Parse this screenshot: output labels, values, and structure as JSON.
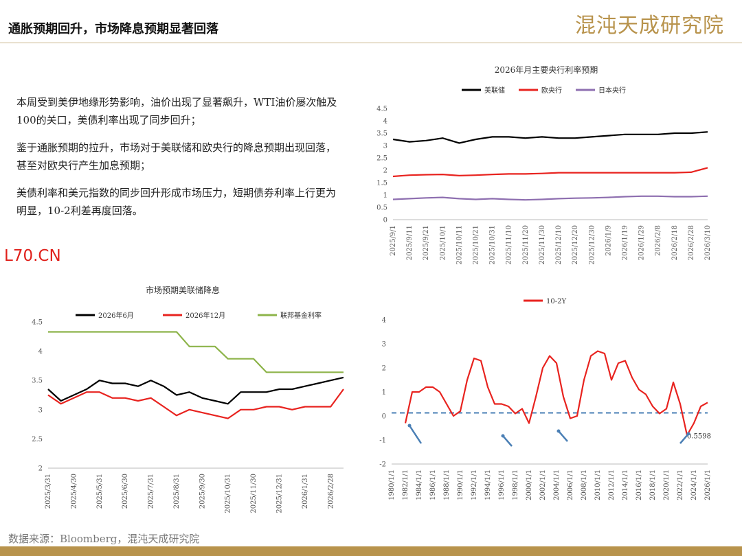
{
  "header": {
    "title": "通胀预期回升，市场降息预期显著回落",
    "logo": "混沌天成研究院"
  },
  "watermark": "L70.CN",
  "text": {
    "paragraphs": [
      "本周受到美伊地缘形势影响，油价出现了显著飙升，WTI油价屡次触及100的关口，美债利率出现了同步回升；",
      "鉴于通胀预期的拉升，市场对于美联储和欧央行的降息预期出现回落，甚至对欧央行产生加息预期；",
      "美债利率和美元指数的同步回升形成市场压力，短期债券利率上行更为明显，10-2利差再度回落。"
    ]
  },
  "source": "数据来源：Bloomberg，混沌天成研究院",
  "chart_data": [
    {
      "type": "line",
      "title": "2026年月主要央行利率预期",
      "categories": [
        "2025/9/1",
        "2025/9/11",
        "2025/9/21",
        "2025/10/1",
        "2025/10/11",
        "2025/10/21",
        "2025/10/31",
        "2025/11/10",
        "2025/11/20",
        "2025/11/30",
        "2025/12/10",
        "2025/12/20",
        "2025/12/30",
        "2026/1/9",
        "2026/1/19",
        "2026/1/29",
        "2026/2/8",
        "2026/2/18",
        "2026/2/28",
        "2026/3/10"
      ],
      "series": [
        {
          "name": "美联储",
          "color": "#000000",
          "values": [
            3.25,
            3.15,
            3.2,
            3.3,
            3.1,
            3.25,
            3.35,
            3.35,
            3.3,
            3.35,
            3.3,
            3.3,
            3.35,
            3.4,
            3.45,
            3.45,
            3.45,
            3.5,
            3.5,
            3.55
          ]
        },
        {
          "name": "欧央行",
          "color": "#e8231f",
          "values": [
            1.75,
            1.8,
            1.82,
            1.83,
            1.78,
            1.8,
            1.83,
            1.85,
            1.85,
            1.87,
            1.9,
            1.9,
            1.9,
            1.9,
            1.9,
            1.9,
            1.9,
            1.9,
            1.92,
            2.1
          ]
        },
        {
          "name": "日本央行",
          "color": "#8e6fb0",
          "values": [
            0.82,
            0.85,
            0.88,
            0.9,
            0.85,
            0.82,
            0.85,
            0.82,
            0.8,
            0.82,
            0.85,
            0.87,
            0.88,
            0.9,
            0.93,
            0.95,
            0.95,
            0.93,
            0.93,
            0.95
          ]
        }
      ],
      "ylim": [
        0,
        4.5
      ],
      "yticks": [
        0,
        0.5,
        1,
        1.5,
        2,
        2.5,
        3,
        3.5,
        4,
        4.5
      ],
      "grid": false
    },
    {
      "type": "line",
      "title": "市场预期美联储降息",
      "categories": [
        "2025/3/31",
        null,
        "2025/4/30",
        null,
        "2025/5/31",
        null,
        "2025/6/30",
        null,
        "2025/7/31",
        null,
        "2025/8/31",
        null,
        "2025/9/30",
        null,
        "2025/10/31",
        null,
        "2025/11/30",
        null,
        "2025/12/31",
        null,
        "2026/1/31",
        null,
        "2026/2/28",
        null
      ],
      "series": [
        {
          "name": "2026年6月",
          "color": "#000000",
          "values": [
            3.35,
            3.15,
            3.25,
            3.35,
            3.5,
            3.45,
            3.45,
            3.4,
            3.5,
            3.4,
            3.25,
            3.3,
            3.2,
            3.15,
            3.1,
            3.3,
            3.3,
            3.3,
            3.35,
            3.35,
            3.4,
            3.45,
            3.5,
            3.55
          ]
        },
        {
          "name": "2026年12月",
          "color": "#e8231f",
          "values": [
            3.25,
            3.1,
            3.2,
            3.3,
            3.3,
            3.2,
            3.2,
            3.15,
            3.2,
            3.05,
            2.9,
            3.0,
            2.95,
            2.9,
            2.85,
            3.0,
            3.0,
            3.05,
            3.05,
            3.0,
            3.05,
            3.05,
            3.05,
            3.35
          ]
        },
        {
          "name": "联邦基金利率",
          "color": "#8db44a",
          "values": [
            4.33,
            4.33,
            4.33,
            4.33,
            4.33,
            4.33,
            4.33,
            4.33,
            4.33,
            4.33,
            4.33,
            4.08,
            4.08,
            4.08,
            3.87,
            3.87,
            3.87,
            3.64,
            3.64,
            3.64,
            3.64,
            3.64,
            3.64,
            3.64
          ]
        }
      ],
      "ylim": [
        2,
        4.5
      ],
      "yticks": [
        2,
        2.5,
        3,
        3.5,
        4,
        4.5
      ],
      "grid": false
    },
    {
      "type": "line",
      "categories": [
        "1980/1/1",
        null,
        "1982/1/1",
        null,
        "1984/1/1",
        null,
        "1986/1/1",
        null,
        "1988/1/1",
        null,
        "1990/1/1",
        null,
        "1992/1/1",
        null,
        "1994/1/1",
        null,
        "1996/1/1",
        null,
        "1998/1/1",
        null,
        "2000/1/1",
        null,
        "2002/1/1",
        null,
        "2004/1/1",
        null,
        "2006/1/1",
        null,
        "2008/1/1",
        null,
        "2010/1/1",
        null,
        "2012/1/1",
        null,
        "2014/1/1",
        null,
        "2016/1/1",
        null,
        "2018/1/1",
        null,
        "2020/1/1",
        null,
        "2022/1/1",
        null,
        "2024/1/1",
        null,
        "2026/1/1"
      ],
      "series": [
        {
          "name": "10-2Y",
          "color": "#e8231f",
          "values": [
            null,
            null,
            -0.3,
            1.0,
            1.0,
            1.2,
            1.2,
            1.0,
            0.5,
            0.0,
            0.2,
            1.5,
            2.4,
            2.3,
            1.2,
            0.5,
            0.5,
            0.4,
            0.1,
            0.3,
            -0.3,
            0.8,
            2.0,
            2.5,
            2.2,
            0.8,
            -0.1,
            0.0,
            1.5,
            2.5,
            2.7,
            2.6,
            1.5,
            2.2,
            2.3,
            1.6,
            1.1,
            0.9,
            0.4,
            0.1,
            0.3,
            1.4,
            0.5,
            -0.8,
            -0.3,
            0.4,
            0.56
          ]
        }
      ],
      "reference_line": {
        "value": 0.13,
        "color": "#4a7fb5"
      },
      "annotation": "0.5598",
      "ylim": [
        -2,
        4
      ],
      "yticks": [
        -2,
        -1,
        0,
        1,
        2,
        3,
        4
      ],
      "grid": false
    }
  ]
}
